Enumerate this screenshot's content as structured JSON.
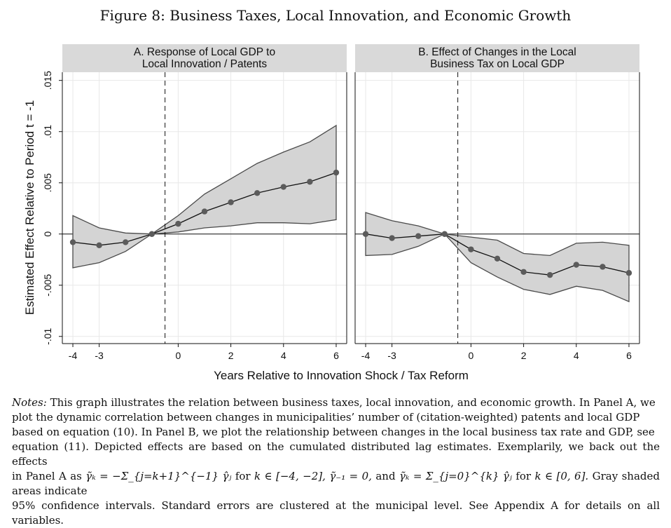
{
  "figure_title": "Figure 8: Business Taxes, Local Innovation, and Economic Growth",
  "chart_data": [
    {
      "type": "line",
      "panel_title_lines": [
        "A. Response of Local GDP to",
        "Local Innovation / Patents"
      ],
      "x": [
        -4,
        -3,
        -2,
        -1,
        0,
        1,
        2,
        3,
        4,
        5,
        6
      ],
      "y": [
        -0.0008,
        -0.0011,
        -0.0008,
        0,
        0.001,
        0.0022,
        0.0031,
        0.004,
        0.0046,
        0.0051,
        0.006
      ],
      "ci_lower": [
        -0.0033,
        -0.0028,
        -0.0017,
        0,
        0.0002,
        0.0006,
        0.0008,
        0.0011,
        0.0011,
        0.001,
        0.0014
      ],
      "ci_upper": [
        0.0018,
        0.0006,
        0.0001,
        0,
        0.0018,
        0.0039,
        0.0054,
        0.0069,
        0.008,
        0.009,
        0.0106
      ],
      "reference_x": -0.5,
      "xticks": [
        -4,
        -3,
        0,
        2,
        4,
        6
      ],
      "xtick_labels": [
        "-4",
        "-3",
        "0",
        "2",
        "4",
        "6"
      ],
      "xlim": [
        -4.4,
        6.4
      ],
      "ylim": [
        -0.0107,
        0.0158
      ]
    },
    {
      "type": "line",
      "panel_title_lines": [
        "B. Effect of Changes in the Local",
        "Business Tax on Local GDP"
      ],
      "x": [
        -4,
        -3,
        -2,
        -1,
        0,
        1,
        2,
        3,
        4,
        5,
        6
      ],
      "y": [
        0,
        -0.0004,
        -0.0002,
        0,
        -0.0015,
        -0.0024,
        -0.0037,
        -0.004,
        -0.003,
        -0.0032,
        -0.0038
      ],
      "ci_lower": [
        -0.0021,
        -0.002,
        -0.0012,
        0,
        -0.0028,
        -0.0042,
        -0.0054,
        -0.0059,
        -0.0051,
        -0.0055,
        -0.0066
      ],
      "ci_upper": [
        0.0021,
        0.0013,
        0.0008,
        0,
        -0.0003,
        -0.0006,
        -0.0019,
        -0.0021,
        -0.0009,
        -0.0008,
        -0.0011
      ],
      "reference_x": -0.5,
      "xticks": [
        -4,
        -3,
        0,
        2,
        4,
        6
      ],
      "xtick_labels": [
        "-4",
        "-3",
        "0",
        "2",
        "4",
        "6"
      ],
      "xlim": [
        -4.4,
        6.4
      ],
      "ylim": [
        -0.0107,
        0.0158
      ]
    }
  ],
  "y_axis": {
    "label": "Estimated Effect Relative to Period t = -1",
    "ticks": [
      -0.01,
      -0.005,
      0,
      0.005,
      0.01,
      0.015
    ],
    "tick_labels": [
      "-.01",
      "-.005",
      "0",
      ".005",
      ".01",
      ".015"
    ]
  },
  "x_axis_label": "Years Relative to Innovation Shock / Tax Reform",
  "colors": {
    "ci_fill": "#d4d4d4",
    "ci_stroke": "#4a4a4a",
    "line": "#111111",
    "marker": "#5b5b5b",
    "panel_header": "#d9d9d9",
    "grid": "#e8e8e8"
  },
  "notes": {
    "label": "Notes:",
    "line1": "This graph illustrates the relation between business taxes, local innovation, and economic growth. In Panel A, we",
    "line2": "plot the dynamic correlation between changes in municipalities’ number of (citation-weighted) patents and local GDP",
    "line3": "based on equation (10). In Panel B, we plot the relationship between changes in the local business tax rate and GDP, see",
    "line4": "equation (11). Depicted effects are based on the cumulated distributed lag estimates. Exemplarily, we back out the effects",
    "line5a": "in Panel A as",
    "formula1": "γ̃ₖ = −Σ_{j=k+1}^{−1} γ̂ⱼ",
    "line5b": "for",
    "formula2": "k ∈ [−4, −2],",
    "formula3": "γ̃₋₁ = 0,",
    "line5c": "and",
    "formula4": "γ̃ₖ = Σ_{j=0}^{k} γ̂ⱼ",
    "line5d": "for",
    "formula5": "k ∈ [0, 6].",
    "line5e": "Gray shaded areas indicate",
    "line6": "95% confidence intervals. Standard errors are clustered at the municipal level. See Appendix A for details on all variables."
  }
}
